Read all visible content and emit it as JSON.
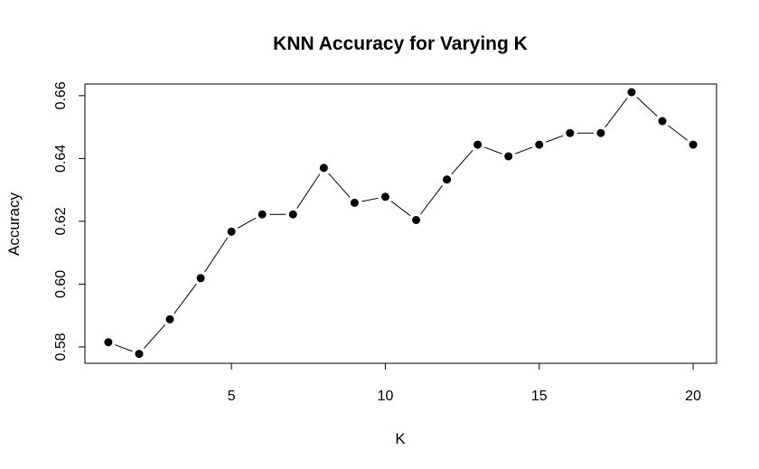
{
  "chart_data": {
    "type": "line",
    "title": "KNN Accuracy for Varying K",
    "xlabel": "K",
    "ylabel": "Accuracy",
    "xlim": [
      0.24,
      20.76
    ],
    "ylim": [
      0.5748,
      0.6637
    ],
    "x_ticks": [
      5,
      10,
      15,
      20
    ],
    "y_ticks": [
      0.58,
      0.6,
      0.62,
      0.64,
      0.66
    ],
    "x_tick_labels": [
      "5",
      "10",
      "15",
      "20"
    ],
    "y_tick_labels": [
      "0.58",
      "0.60",
      "0.62",
      "0.64",
      "0.66"
    ],
    "grid": false,
    "series": [
      {
        "x": [
          1,
          2,
          3,
          4,
          5,
          6,
          7,
          8,
          9,
          10,
          11,
          12,
          13,
          14,
          15,
          16,
          17,
          18,
          19,
          20
        ],
        "values": [
          0.5815,
          0.5778,
          0.5888,
          0.6019,
          0.6167,
          0.6222,
          0.6222,
          0.637,
          0.6259,
          0.6278,
          0.6204,
          0.6333,
          0.6444,
          0.6407,
          0.6444,
          0.6481,
          0.6481,
          0.6611,
          0.6519,
          0.6444
        ],
        "color": "#000000"
      }
    ]
  }
}
